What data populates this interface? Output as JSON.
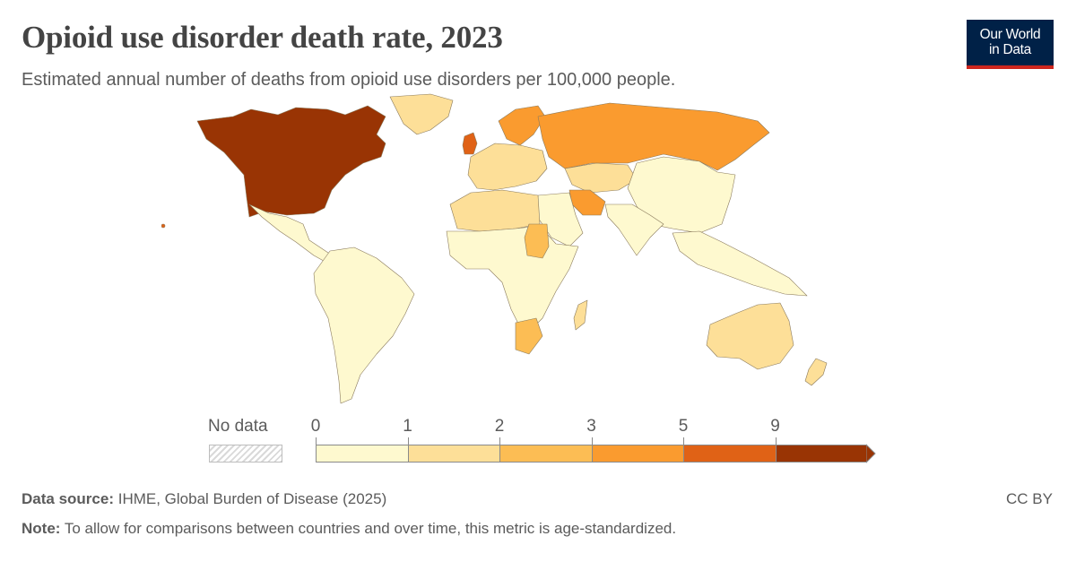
{
  "header": {
    "title": "Opioid use disorder death rate, 2023",
    "subtitle": "Estimated annual number of deaths from opioid use disorders per 100,000 people."
  },
  "logo": {
    "line1": "Our World",
    "line2": "in Data"
  },
  "legend": {
    "no_data_label": "No data",
    "ticks": [
      "0",
      "1",
      "2",
      "3",
      "5",
      "9"
    ],
    "bins": [
      {
        "color": "#fef9cf"
      },
      {
        "color": "#fddf98"
      },
      {
        "color": "#fcbd54"
      },
      {
        "color": "#fa9b2f"
      },
      {
        "color": "#e06216"
      },
      {
        "color": "#993404"
      }
    ]
  },
  "regions": [
    {
      "id": "north-america",
      "label": "United States & Canada",
      "value": "9+"
    },
    {
      "id": "greenland",
      "label": "Greenland",
      "value": "1-2"
    },
    {
      "id": "central-america",
      "label": "Mexico & Central America",
      "value": "0-1"
    },
    {
      "id": "south-america",
      "label": "South America",
      "value": "0-1"
    },
    {
      "id": "uk",
      "label": "United Kingdom",
      "value": "5-9"
    },
    {
      "id": "scandinavia",
      "label": "Scandinavia",
      "value": "3-5"
    },
    {
      "id": "western-europe",
      "label": "Western Europe",
      "value": "1-2"
    },
    {
      "id": "russia",
      "label": "Russia",
      "value": "3-5"
    },
    {
      "id": "central-asia",
      "label": "Central Asia",
      "value": "1-2"
    },
    {
      "id": "iran",
      "label": "Iran",
      "value": "3-5"
    },
    {
      "id": "middle-east",
      "label": "Middle East",
      "value": "0-1"
    },
    {
      "id": "north-africa",
      "label": "North Africa",
      "value": "1-2"
    },
    {
      "id": "sub-saharan-africa",
      "label": "Sub-Saharan Africa",
      "value": "0-1"
    },
    {
      "id": "sudan",
      "label": "Sudan",
      "value": "2-3"
    },
    {
      "id": "southern-africa",
      "label": "Southern Africa",
      "value": "2-3"
    },
    {
      "id": "madagascar",
      "label": "Madagascar",
      "value": "1-2"
    },
    {
      "id": "china",
      "label": "China & East Asia",
      "value": "0-1"
    },
    {
      "id": "south-asia",
      "label": "South Asia",
      "value": "0-1"
    },
    {
      "id": "southeast-asia",
      "label": "Southeast Asia",
      "value": "0-1"
    },
    {
      "id": "australia",
      "label": "Australia",
      "value": "1-2"
    },
    {
      "id": "new-zealand",
      "label": "New Zealand",
      "value": "1-2"
    }
  ],
  "footer": {
    "source_label": "Data source:",
    "source_text": "IHME, Global Burden of Disease (2025)",
    "note_label": "Note:",
    "note_text": "To allow for comparisons between countries and over time, this metric is age-standardized.",
    "license": "CC BY"
  }
}
